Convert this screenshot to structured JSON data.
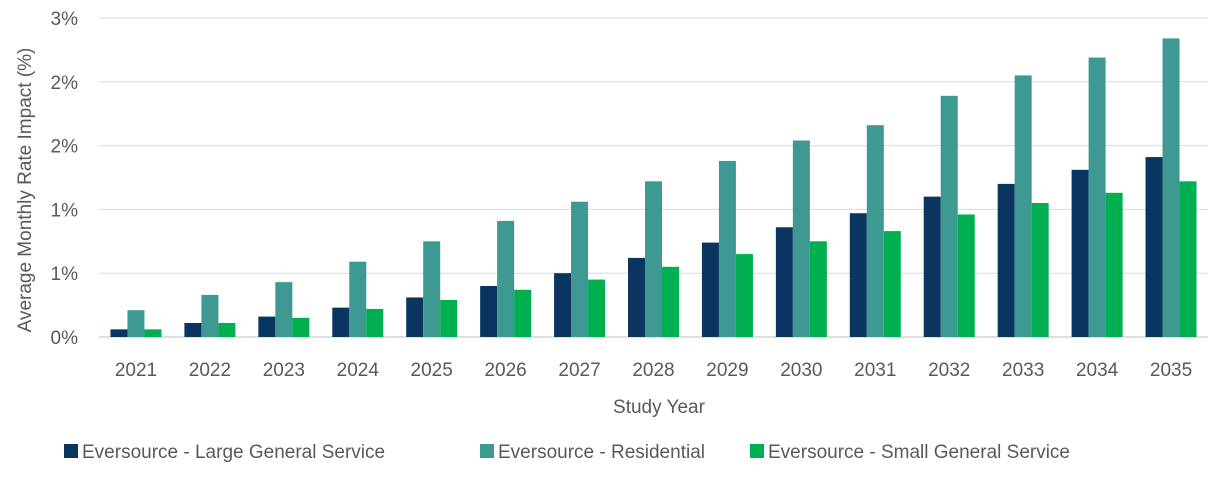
{
  "chart_data": {
    "type": "bar",
    "title": "",
    "xlabel": "Study Year",
    "ylabel": "Average Monthly Rate Impact (%)",
    "ylim": [
      0,
      2.5
    ],
    "y_ticks": [
      {
        "value": 0,
        "label": "0%"
      },
      {
        "value": 0.5,
        "label": "1%"
      },
      {
        "value": 1.0,
        "label": "1%"
      },
      {
        "value": 1.5,
        "label": "2%"
      },
      {
        "value": 2.0,
        "label": "2%"
      },
      {
        "value": 2.5,
        "label": "3%"
      }
    ],
    "categories": [
      "2021",
      "2022",
      "2023",
      "2024",
      "2025",
      "2026",
      "2027",
      "2028",
      "2029",
      "2030",
      "2031",
      "2032",
      "2033",
      "2034",
      "2035"
    ],
    "series": [
      {
        "name": "Eversource - Large General Service",
        "color": "#0a3560",
        "values": [
          0.06,
          0.11,
          0.16,
          0.23,
          0.31,
          0.4,
          0.5,
          0.62,
          0.74,
          0.86,
          0.97,
          1.1,
          1.2,
          1.31,
          1.41
        ]
      },
      {
        "name": "Eversource - Residential",
        "color": "#3d9991",
        "values": [
          0.21,
          0.33,
          0.43,
          0.59,
          0.75,
          0.91,
          1.06,
          1.22,
          1.38,
          1.54,
          1.66,
          1.89,
          2.05,
          2.19,
          2.34
        ]
      },
      {
        "name": "Eversource - Small General Service",
        "color": "#00b050",
        "values": [
          0.06,
          0.11,
          0.15,
          0.22,
          0.29,
          0.37,
          0.45,
          0.55,
          0.65,
          0.75,
          0.83,
          0.96,
          1.05,
          1.13,
          1.22
        ]
      }
    ],
    "grid": true,
    "legend_position": "bottom"
  }
}
